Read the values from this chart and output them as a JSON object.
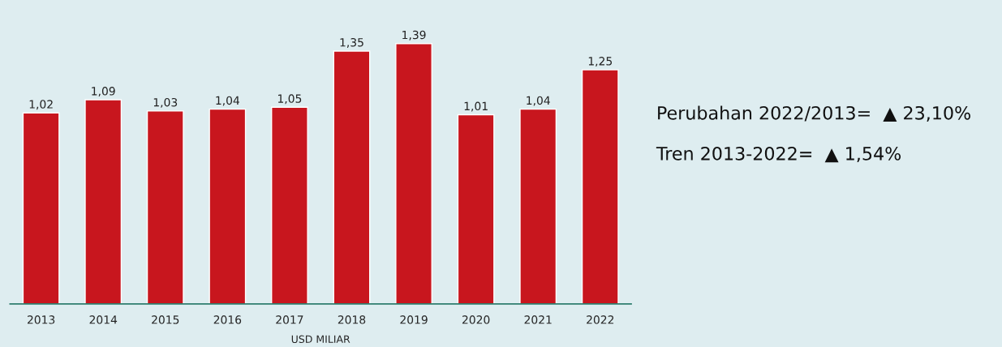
{
  "chart_data": {
    "type": "bar",
    "categories": [
      "2013",
      "2014",
      "2015",
      "2016",
      "2017",
      "2018",
      "2019",
      "2020",
      "2021",
      "2022"
    ],
    "series": [
      {
        "color": "#c8161e",
        "values": [
          1.02,
          1.09,
          1.03,
          1.04,
          1.05,
          1.35,
          1.39,
          1.01,
          1.04,
          1.25
        ],
        "value_labels": [
          "1,02",
          "1,09",
          "1,03",
          "1,04",
          "1,05",
          "1,35",
          "1,39",
          "1,01",
          "1,04",
          "1,25"
        ]
      }
    ],
    "xlabel": "USD MILIAR",
    "annotations": [
      "Perubahan 2022/2013=  ▲ 23,10%",
      "Tren 2013-2022=  ▲ 1,54%"
    ],
    "tick_labels": "x",
    "grid": false,
    "legend": false
  }
}
